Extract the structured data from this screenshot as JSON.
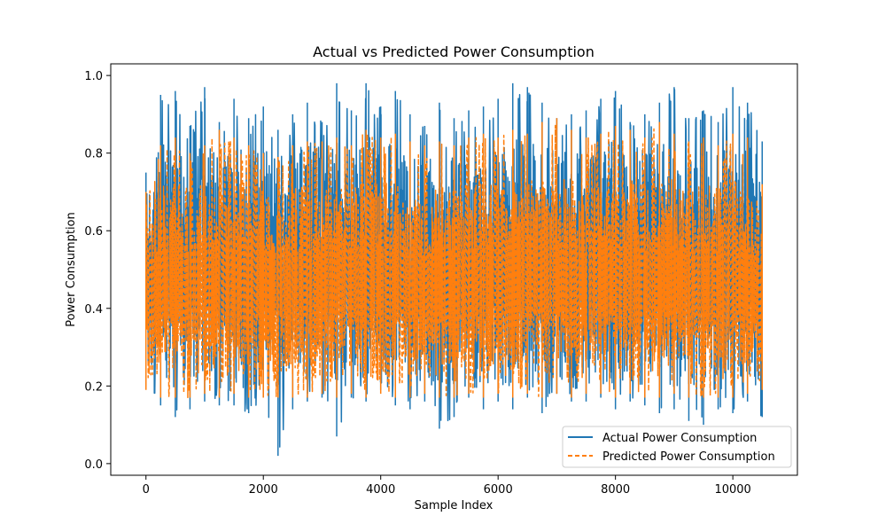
{
  "chart_data": {
    "type": "line",
    "title": "Actual vs Predicted Power Consumption",
    "xlabel": "Sample Index",
    "ylabel": "Power Consumption",
    "xlim": [
      -600,
      11100
    ],
    "ylim": [
      -0.03,
      1.03
    ],
    "xticks": [
      0,
      2000,
      4000,
      6000,
      8000,
      10000
    ],
    "xtick_labels": [
      "0",
      "2000",
      "4000",
      "6000",
      "8000",
      "10000"
    ],
    "yticks": [
      0.0,
      0.2,
      0.4,
      0.6,
      0.8,
      1.0
    ],
    "ytick_labels": [
      "0.0",
      "0.2",
      "0.4",
      "0.6",
      "0.8",
      "1.0"
    ],
    "grid": false,
    "legend_position": "lower-right",
    "x": [
      0,
      250,
      500,
      750,
      1000,
      1250,
      1500,
      1750,
      2000,
      2250,
      2500,
      2750,
      3000,
      3250,
      3500,
      3750,
      4000,
      4250,
      4500,
      4750,
      5000,
      5250,
      5500,
      5750,
      6000,
      6250,
      6500,
      6750,
      7000,
      7250,
      7500,
      7750,
      8000,
      8250,
      8500,
      8750,
      9000,
      9250,
      9500,
      9750,
      10000,
      10250,
      10500
    ],
    "series": [
      {
        "name": "Actual Power Consumption",
        "color": "#1f77b4",
        "style": "solid",
        "max": [
          0.75,
          0.95,
          0.96,
          0.87,
          0.97,
          0.88,
          0.94,
          0.89,
          0.92,
          0.86,
          0.9,
          0.93,
          0.88,
          0.98,
          0.91,
          0.98,
          0.92,
          0.96,
          0.9,
          0.87,
          0.93,
          0.89,
          0.91,
          0.92,
          0.94,
          0.98,
          0.97,
          0.93,
          0.89,
          0.9,
          0.91,
          0.94,
          0.96,
          0.88,
          0.9,
          0.93,
          0.97,
          0.89,
          0.91,
          0.88,
          0.97,
          0.93,
          0.83
        ],
        "min": [
          0.2,
          0.15,
          0.12,
          0.14,
          0.16,
          0.15,
          0.15,
          0.13,
          0.17,
          0.02,
          0.14,
          0.16,
          0.17,
          0.07,
          0.17,
          0.16,
          0.19,
          0.15,
          0.14,
          0.16,
          0.09,
          0.12,
          0.17,
          0.14,
          0.16,
          0.14,
          0.17,
          0.13,
          0.18,
          0.16,
          0.16,
          0.17,
          0.14,
          0.16,
          0.15,
          0.13,
          0.14,
          0.11,
          0.1,
          0.14,
          0.13,
          0.16,
          0.12
        ],
        "upper": [
          0.72,
          0.82,
          0.83,
          0.8,
          0.82,
          0.8,
          0.83,
          0.82,
          0.81,
          0.8,
          0.82,
          0.83,
          0.82,
          0.84,
          0.82,
          0.85,
          0.82,
          0.83,
          0.81,
          0.8,
          0.82,
          0.81,
          0.82,
          0.81,
          0.83,
          0.84,
          0.83,
          0.82,
          0.81,
          0.8,
          0.82,
          0.83,
          0.84,
          0.81,
          0.82,
          0.83,
          0.84,
          0.8,
          0.81,
          0.8,
          0.83,
          0.82,
          0.78
        ],
        "lower": [
          0.22,
          0.2,
          0.19,
          0.19,
          0.2,
          0.19,
          0.19,
          0.19,
          0.2,
          0.19,
          0.19,
          0.2,
          0.2,
          0.19,
          0.2,
          0.2,
          0.21,
          0.19,
          0.19,
          0.2,
          0.19,
          0.19,
          0.2,
          0.19,
          0.2,
          0.19,
          0.2,
          0.19,
          0.21,
          0.2,
          0.2,
          0.2,
          0.19,
          0.2,
          0.19,
          0.19,
          0.19,
          0.19,
          0.19,
          0.19,
          0.19,
          0.2,
          0.2
        ]
      },
      {
        "name": "Predicted Power Consumption",
        "color": "#ff7f0e",
        "style": "dashed",
        "max": [
          0.7,
          0.82,
          0.84,
          0.8,
          0.82,
          0.86,
          0.84,
          0.82,
          0.8,
          0.79,
          0.82,
          0.83,
          0.83,
          0.84,
          0.82,
          0.86,
          0.84,
          0.85,
          0.83,
          0.82,
          0.83,
          0.82,
          0.84,
          0.85,
          0.84,
          0.86,
          0.85,
          0.88,
          0.89,
          0.86,
          0.84,
          0.85,
          0.87,
          0.86,
          0.84,
          0.88,
          0.85,
          0.83,
          0.84,
          0.82,
          0.85,
          0.84,
          0.72
        ],
        "min": [
          0.19,
          0.17,
          0.17,
          0.17,
          0.18,
          0.17,
          0.18,
          0.17,
          0.17,
          0.17,
          0.17,
          0.17,
          0.18,
          0.17,
          0.18,
          0.17,
          0.18,
          0.17,
          0.17,
          0.18,
          0.17,
          0.17,
          0.18,
          0.17,
          0.18,
          0.17,
          0.18,
          0.17,
          0.18,
          0.17,
          0.18,
          0.18,
          0.17,
          0.18,
          0.17,
          0.17,
          0.18,
          0.17,
          0.17,
          0.17,
          0.17,
          0.18,
          0.19
        ],
        "upper": [
          0.62,
          0.72,
          0.73,
          0.71,
          0.72,
          0.72,
          0.73,
          0.72,
          0.71,
          0.7,
          0.72,
          0.72,
          0.72,
          0.73,
          0.72,
          0.74,
          0.72,
          0.73,
          0.72,
          0.71,
          0.72,
          0.71,
          0.72,
          0.72,
          0.73,
          0.74,
          0.73,
          0.74,
          0.74,
          0.73,
          0.72,
          0.73,
          0.74,
          0.73,
          0.72,
          0.74,
          0.73,
          0.71,
          0.72,
          0.71,
          0.73,
          0.72,
          0.66
        ],
        "lower": [
          0.22,
          0.21,
          0.21,
          0.21,
          0.21,
          0.21,
          0.21,
          0.21,
          0.21,
          0.21,
          0.21,
          0.21,
          0.21,
          0.21,
          0.21,
          0.21,
          0.21,
          0.21,
          0.21,
          0.21,
          0.21,
          0.21,
          0.21,
          0.21,
          0.21,
          0.21,
          0.21,
          0.21,
          0.21,
          0.21,
          0.21,
          0.21,
          0.21,
          0.21,
          0.21,
          0.21,
          0.21,
          0.21,
          0.21,
          0.21,
          0.21,
          0.21,
          0.22
        ]
      }
    ]
  }
}
